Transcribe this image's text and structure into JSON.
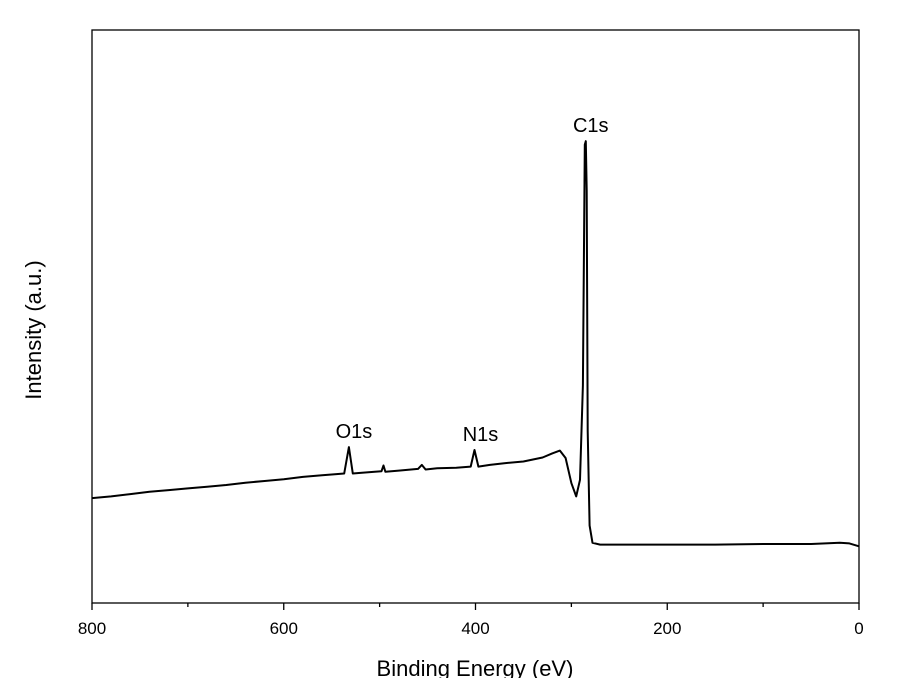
{
  "chart_data": {
    "type": "line",
    "xlabel": "Binding Energy (eV)",
    "ylabel": "Intensity (a.u.)",
    "x_axis": {
      "range": [
        800,
        0
      ],
      "reversed": true,
      "major_ticks": [
        800,
        600,
        400,
        200,
        0
      ],
      "minor_ticks": [
        700,
        500,
        300,
        100
      ],
      "tick_labels": [
        "800",
        "600",
        "400",
        "200",
        "0"
      ]
    },
    "y_axis": {
      "range": [
        0,
        100
      ],
      "tick_labels_shown": false
    },
    "grid": false,
    "legend": "none",
    "annotations": [
      {
        "text": "C1s",
        "x": 285
      },
      {
        "text": "O1s",
        "x": 532
      },
      {
        "text": "N1s",
        "x": 400
      }
    ],
    "series": [
      {
        "color": "#000000",
        "points": [
          [
            800,
            18.3
          ],
          [
            780,
            18.6
          ],
          [
            760,
            19.0
          ],
          [
            740,
            19.4
          ],
          [
            720,
            19.7
          ],
          [
            700,
            20.0
          ],
          [
            680,
            20.3
          ],
          [
            660,
            20.6
          ],
          [
            640,
            21.0
          ],
          [
            620,
            21.3
          ],
          [
            600,
            21.6
          ],
          [
            580,
            22.0
          ],
          [
            560,
            22.3
          ],
          [
            545,
            22.5
          ],
          [
            537,
            22.6
          ],
          [
            532,
            27.2
          ],
          [
            528,
            22.6
          ],
          [
            520,
            22.7
          ],
          [
            505,
            22.9
          ],
          [
            498,
            23.0
          ],
          [
            496,
            24.0
          ],
          [
            494,
            22.9
          ],
          [
            480,
            23.1
          ],
          [
            460,
            23.4
          ],
          [
            456,
            24.1
          ],
          [
            452,
            23.3
          ],
          [
            440,
            23.5
          ],
          [
            420,
            23.6
          ],
          [
            405,
            23.8
          ],
          [
            401,
            26.7
          ],
          [
            397,
            23.8
          ],
          [
            385,
            24.1
          ],
          [
            370,
            24.4
          ],
          [
            350,
            24.7
          ],
          [
            330,
            25.4
          ],
          [
            320,
            26.1
          ],
          [
            312,
            26.6
          ],
          [
            306,
            25.3
          ],
          [
            300,
            20.9
          ],
          [
            295,
            18.6
          ],
          [
            291,
            21.5
          ],
          [
            288,
            38.0
          ],
          [
            286,
            80.0
          ],
          [
            285,
            80.6
          ],
          [
            284,
            72.0
          ],
          [
            283,
            30.0
          ],
          [
            281,
            13.5
          ],
          [
            278,
            10.5
          ],
          [
            270,
            10.2
          ],
          [
            250,
            10.2
          ],
          [
            200,
            10.2
          ],
          [
            150,
            10.2
          ],
          [
            100,
            10.3
          ],
          [
            50,
            10.3
          ],
          [
            20,
            10.5
          ],
          [
            10,
            10.4
          ],
          [
            0,
            9.9
          ]
        ]
      }
    ]
  }
}
